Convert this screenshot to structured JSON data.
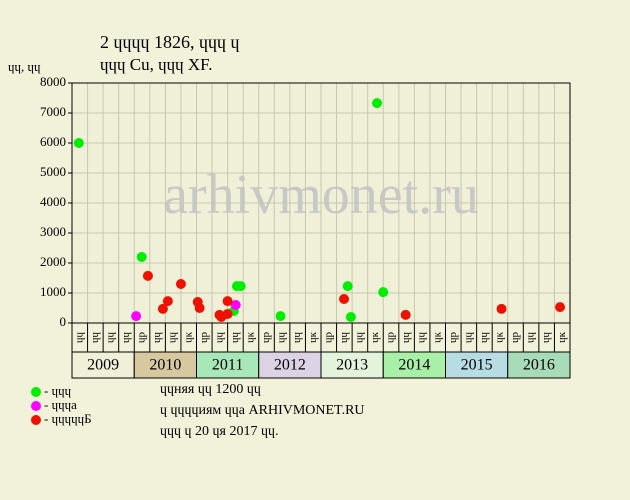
{
  "chart_data": {
    "type": "scatter",
    "title": "2 ɥɥɥɥ 1826, ɥɥɥ ɥ",
    "subtitle": "ɥɥɥ Cu, ɥɥɥ XF.",
    "ylabel": "ɥɥ, ɥɥ",
    "watermark": "arhivmonet.ru",
    "ylim": [
      0,
      8000
    ],
    "yticks": [
      0,
      1000,
      2000,
      3000,
      4000,
      5000,
      6000,
      7000,
      8000
    ],
    "xlim": [
      2009,
      2017
    ],
    "xticks": [
      2009,
      2010,
      2011,
      2012,
      2013,
      2014,
      2015,
      2016
    ],
    "year_colors": [
      "#f0f0d8",
      "#d8c8a0",
      "#a8e8b8",
      "#dcd4e4",
      "#e4f4dc",
      "#a8f0a8",
      "#b8dce4",
      "#a8dcb8"
    ],
    "quarter_labels": [
      "ɥɥ",
      "ɥɥ",
      "ɥɥ",
      "ɥɥ",
      "ɥр",
      "ɥɥ",
      "ɥɥ",
      "ɥк",
      "ɥр",
      "ɥɥ",
      "ɥɥ",
      "ɥк",
      "ɥр",
      "ɥɥ",
      "ɥɥ",
      "ɥк",
      "ɥр",
      "ɥɥ",
      "ɥɥ",
      "ɥк",
      "ɥр",
      "ɥɥ",
      "ɥɥ",
      "ɥк",
      "ɥр",
      "ɥɥ",
      "ɥɥ",
      "ɥк",
      "ɥр",
      "ɥɥ",
      "ɥɥ",
      "ɥк"
    ],
    "grid": true,
    "series": [
      {
        "name": "- ɥɥɥ",
        "color": "#00ee00",
        "x": [
          2009.11,
          2010.12,
          2011.65,
          2011.71,
          2011.6,
          2012.35,
          2013.43,
          2013.48,
          2013.9,
          2014.0
        ],
        "values": [
          6000,
          2200,
          1230,
          1230,
          400,
          230,
          1230,
          200,
          7330,
          1030
        ]
      },
      {
        "name": "- ɥɥɥа",
        "color": "#ff00ff",
        "x": [
          2010.03,
          2011.63
        ],
        "values": [
          230,
          600
        ]
      },
      {
        "name": "- ɥɥɥɥɥБ",
        "color": "#ee1100",
        "x": [
          2010.22,
          2010.46,
          2010.54,
          2010.75,
          2011.02,
          2011.05,
          2011.37,
          2011.4,
          2011.5,
          2011.5,
          2013.37,
          2014.36,
          2015.9,
          2016.84
        ],
        "values": [
          1570,
          470,
          730,
          1300,
          700,
          500,
          270,
          200,
          730,
          300,
          800,
          270,
          470,
          530
        ]
      }
    ],
    "notes": [
      "ɥɥняя ɥɥ 1200 ɥɥ",
      "ɥ ɥɥɥɥиям ɥɥа ARHIVMONET.RU",
      "ɥɥɥ ɥ 20 ɥя 2017 ɥɥ."
    ]
  }
}
